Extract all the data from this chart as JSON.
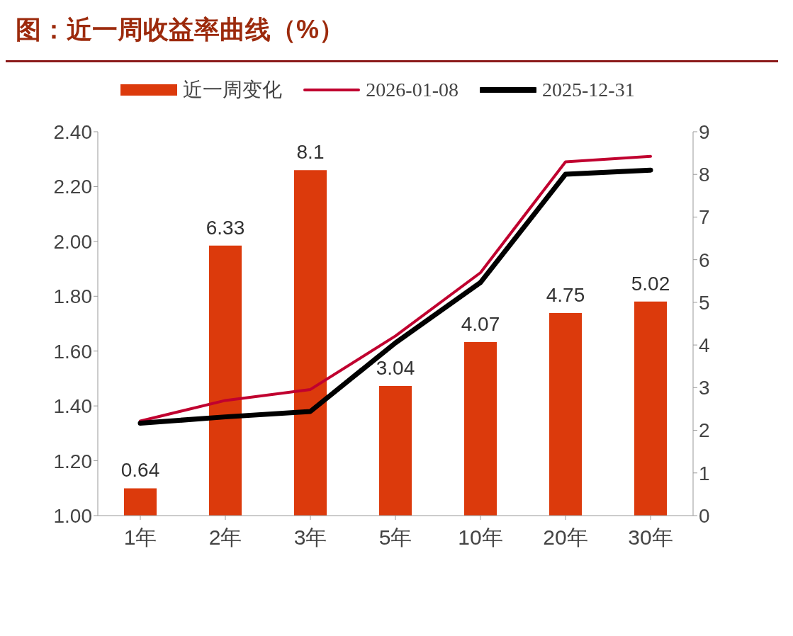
{
  "chart_data": {
    "type": "line",
    "title": "图：近一周收益率曲线（%）",
    "categories": [
      "1年",
      "2年",
      "3年",
      "5年",
      "10年",
      "20年",
      "30年"
    ],
    "series": [
      {
        "name": "近一周变化",
        "type": "bar",
        "axis": "y2",
        "color": "#dc3a0c",
        "values": [
          0.64,
          6.33,
          8.1,
          3.04,
          4.07,
          4.75,
          5.02
        ],
        "value_labels": [
          "0.64",
          "6.33",
          "8.1",
          "3.04",
          "4.07",
          "4.75",
          "5.02"
        ]
      },
      {
        "name": "2026-01-08",
        "color": "#c0002f",
        "values": [
          1.345,
          1.42,
          1.46,
          1.655,
          1.886,
          2.29,
          2.31
        ]
      },
      {
        "name": "2025-12-31",
        "color": "#000000",
        "values": [
          1.337,
          1.36,
          1.38,
          1.63,
          1.85,
          2.245,
          2.26
        ]
      }
    ],
    "ylim": [
      1,
      2.4
    ],
    "yticks": [
      {
        "value": 1,
        "label": "1.00"
      },
      {
        "value": 1.2,
        "label": "1.20"
      },
      {
        "value": 1.4,
        "label": "1.40"
      },
      {
        "value": 1.6,
        "label": "1.60"
      },
      {
        "value": 1.8,
        "label": "1.80"
      },
      {
        "value": 2,
        "label": "2.00"
      },
      {
        "value": 2.2,
        "label": "2.20"
      },
      {
        "value": 2.4,
        "label": "2.40"
      }
    ],
    "y2lim": [
      0,
      9
    ],
    "y2ticks": [
      0,
      1,
      2,
      3,
      4,
      5,
      6,
      7,
      8,
      9
    ],
    "grid": false,
    "legend": "top",
    "marker": "none",
    "line_style": "solid"
  }
}
